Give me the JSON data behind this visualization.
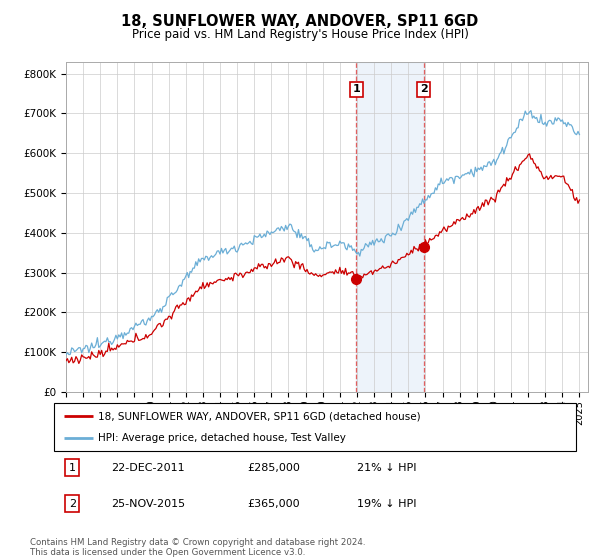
{
  "title": "18, SUNFLOWER WAY, ANDOVER, SP11 6GD",
  "subtitle": "Price paid vs. HM Land Registry's House Price Index (HPI)",
  "title_fontsize": 10.5,
  "subtitle_fontsize": 8.5,
  "ylabel_ticks": [
    "£0",
    "£100K",
    "£200K",
    "£300K",
    "£400K",
    "£500K",
    "£600K",
    "£700K",
    "£800K"
  ],
  "ytick_values": [
    0,
    100000,
    200000,
    300000,
    400000,
    500000,
    600000,
    700000,
    800000
  ],
  "ylim": [
    0,
    830000
  ],
  "xlim_start": 1995.0,
  "xlim_end": 2025.5,
  "hpi_color": "#6baed6",
  "price_color": "#cc0000",
  "transaction1_date": 2011.97,
  "transaction1_price": 285000,
  "transaction1_label": "1",
  "transaction2_date": 2015.9,
  "transaction2_price": 365000,
  "transaction2_label": "2",
  "shade_color": "#c6d9f0",
  "dashed_color": "#e06060",
  "legend_line1": "18, SUNFLOWER WAY, ANDOVER, SP11 6GD (detached house)",
  "legend_line2": "HPI: Average price, detached house, Test Valley",
  "table_row1": [
    "1",
    "22-DEC-2011",
    "£285,000",
    "21% ↓ HPI"
  ],
  "table_row2": [
    "2",
    "25-NOV-2015",
    "£365,000",
    "19% ↓ HPI"
  ],
  "footnote": "Contains HM Land Registry data © Crown copyright and database right 2024.\nThis data is licensed under the Open Government Licence v3.0.",
  "background_color": "#ffffff",
  "grid_color": "#cccccc"
}
